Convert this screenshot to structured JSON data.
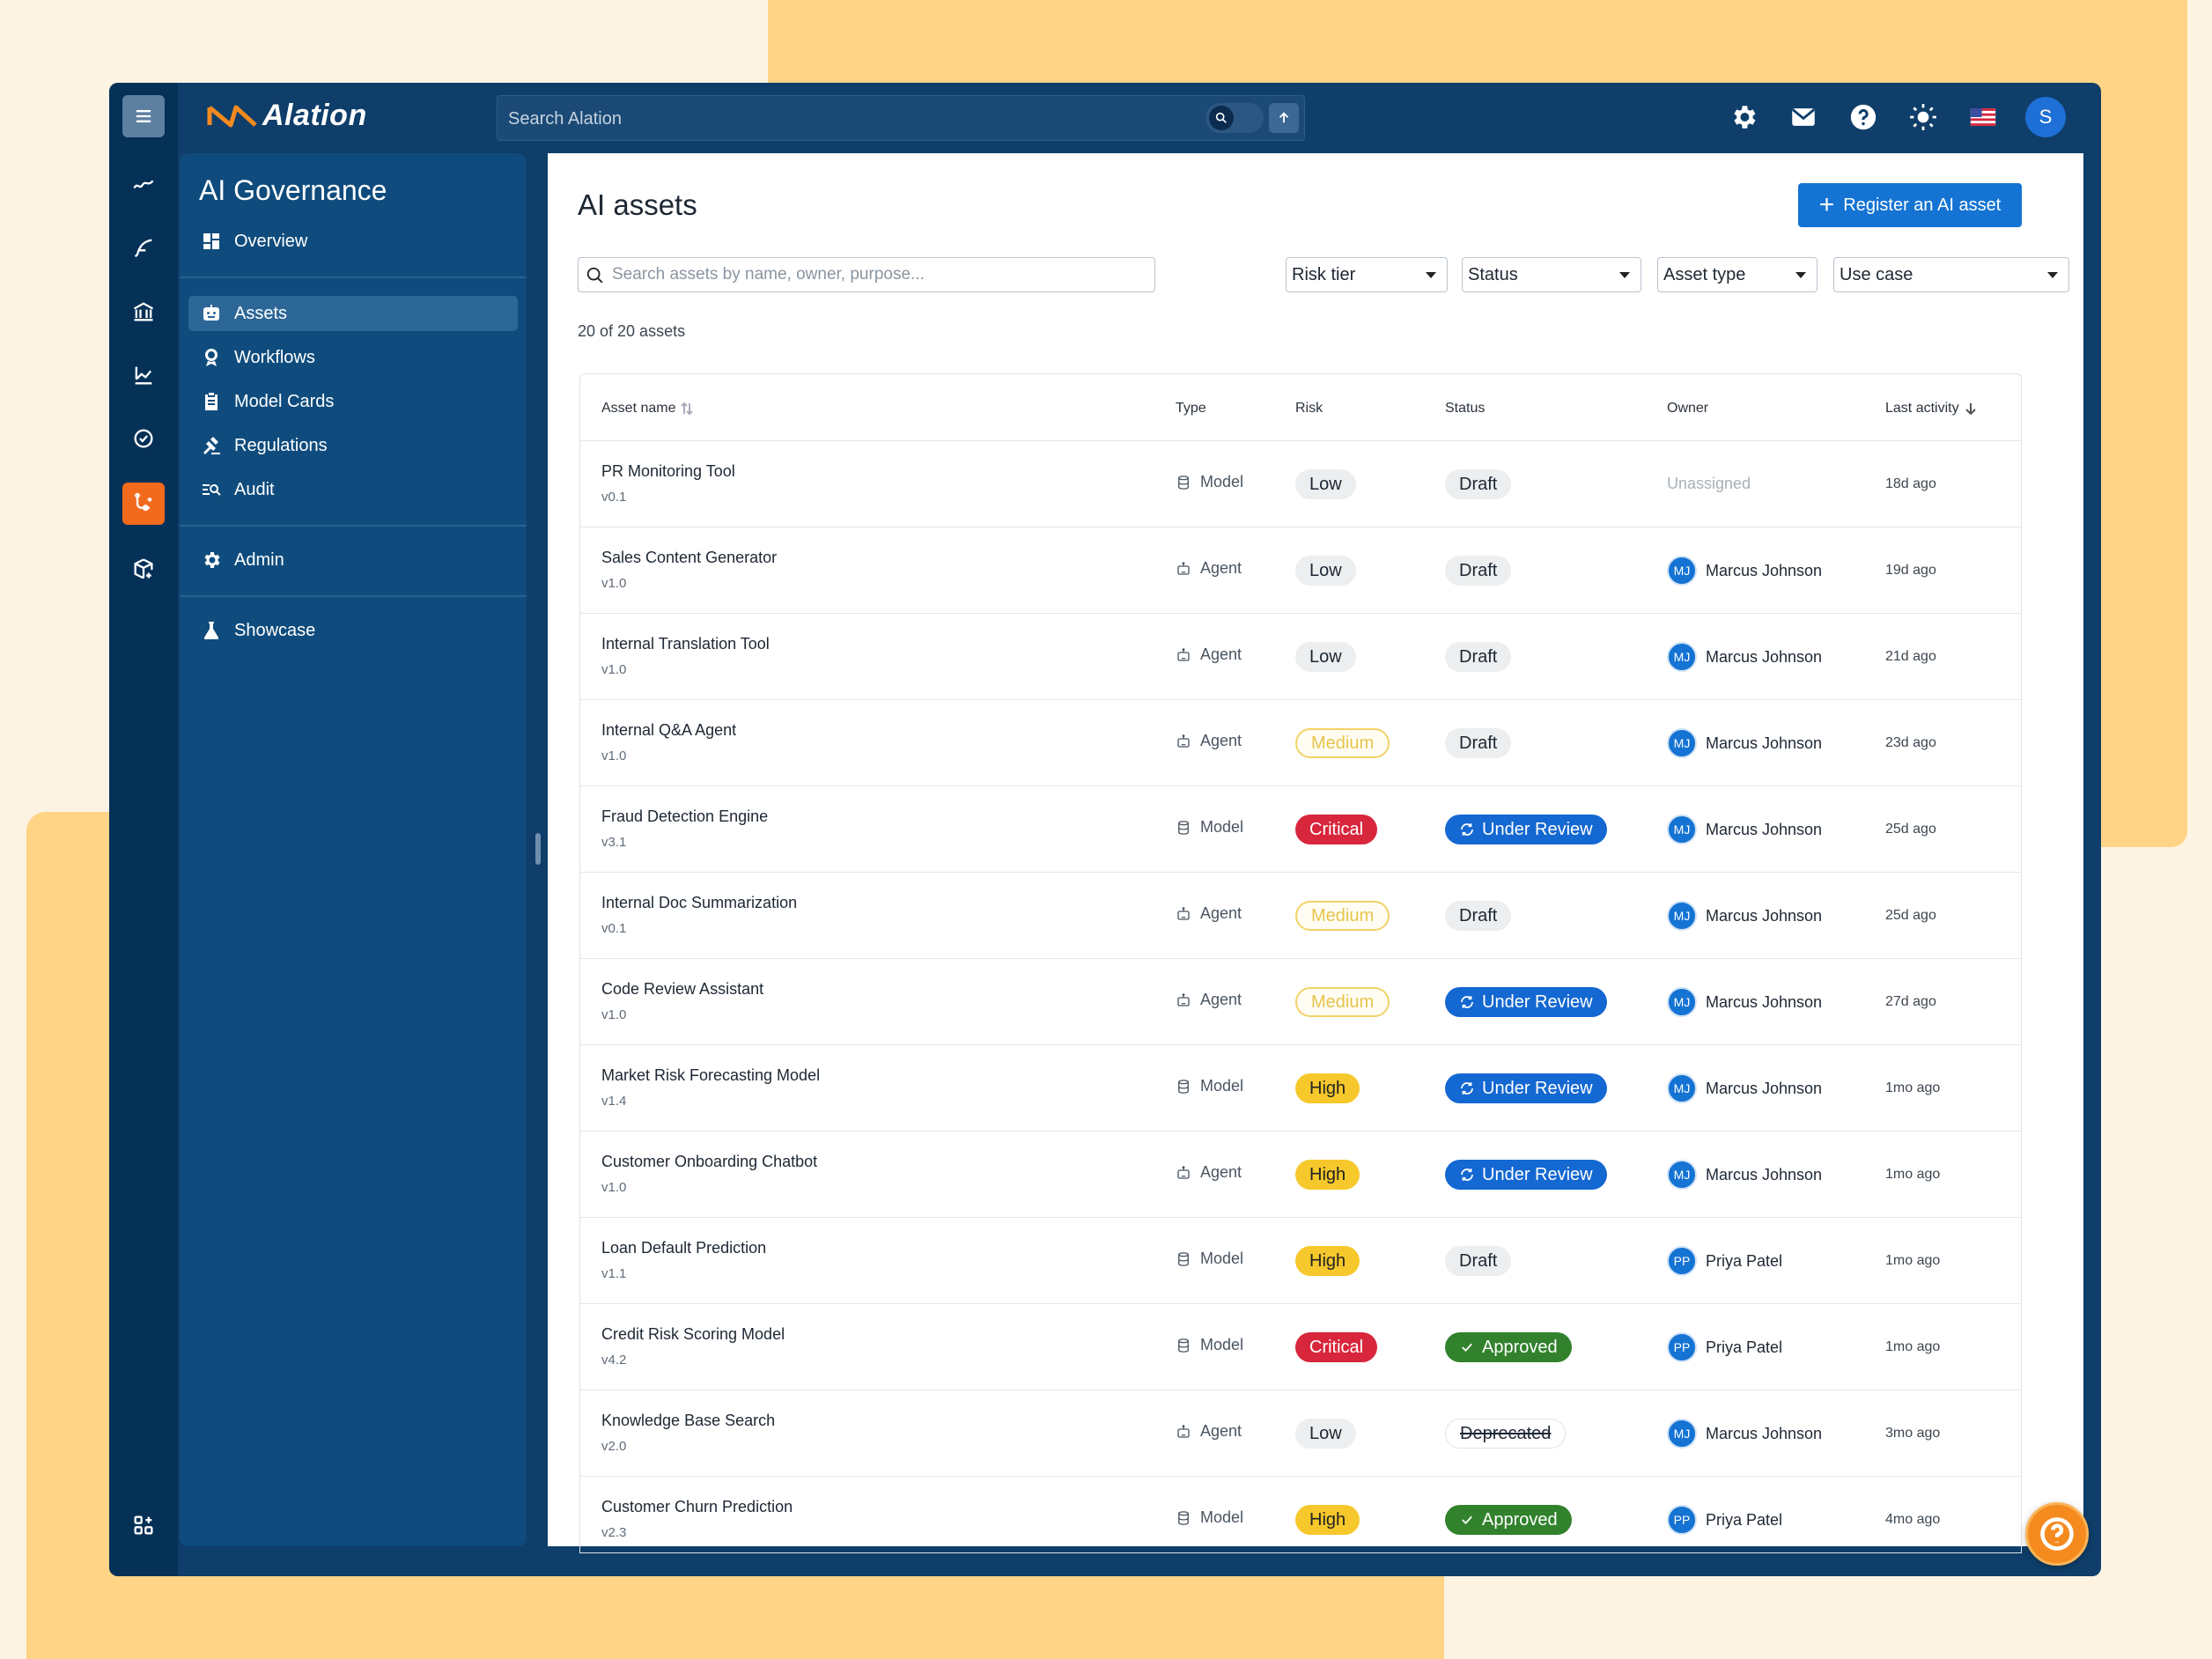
{
  "app": {
    "brand": "Alation",
    "search_placeholder": "Search Alation",
    "user_initial": "S"
  },
  "sidebar": {
    "title": "AI Governance",
    "items": [
      {
        "label": "Overview"
      },
      {
        "label": "Assets"
      },
      {
        "label": "Workflows"
      },
      {
        "label": "Model Cards"
      },
      {
        "label": "Regulations"
      },
      {
        "label": "Audit"
      },
      {
        "label": "Admin"
      },
      {
        "label": "Showcase"
      }
    ]
  },
  "main": {
    "title": "AI assets",
    "register_label": "Register an AI asset",
    "search_placeholder": "Search assets by name, owner, purpose...",
    "filters": [
      "Risk tier",
      "Status",
      "Asset type",
      "Use case"
    ],
    "count_text": "20 of 20 assets",
    "columns": [
      "Asset name",
      "Type",
      "Risk",
      "Status",
      "Owner",
      "Last activity"
    ],
    "rows": [
      {
        "name": "PR Monitoring Tool",
        "version": "v0.1",
        "type": "Model",
        "risk": "Low",
        "status": "Draft",
        "owner_initials": "",
        "owner": "Unassigned",
        "last": "18d ago"
      },
      {
        "name": "Sales Content Generator",
        "version": "v1.0",
        "type": "Agent",
        "risk": "Low",
        "status": "Draft",
        "owner_initials": "MJ",
        "owner": "Marcus Johnson",
        "last": "19d ago"
      },
      {
        "name": "Internal Translation Tool",
        "version": "v1.0",
        "type": "Agent",
        "risk": "Low",
        "status": "Draft",
        "owner_initials": "MJ",
        "owner": "Marcus Johnson",
        "last": "21d ago"
      },
      {
        "name": "Internal Q&A Agent",
        "version": "v1.0",
        "type": "Agent",
        "risk": "Medium",
        "status": "Draft",
        "owner_initials": "MJ",
        "owner": "Marcus Johnson",
        "last": "23d ago"
      },
      {
        "name": "Fraud Detection Engine",
        "version": "v3.1",
        "type": "Model",
        "risk": "Critical",
        "status": "Under Review",
        "owner_initials": "MJ",
        "owner": "Marcus Johnson",
        "last": "25d ago"
      },
      {
        "name": "Internal Doc Summarization",
        "version": "v0.1",
        "type": "Agent",
        "risk": "Medium",
        "status": "Draft",
        "owner_initials": "MJ",
        "owner": "Marcus Johnson",
        "last": "25d ago"
      },
      {
        "name": "Code Review Assistant",
        "version": "v1.0",
        "type": "Agent",
        "risk": "Medium",
        "status": "Under Review",
        "owner_initials": "MJ",
        "owner": "Marcus Johnson",
        "last": "27d ago"
      },
      {
        "name": "Market Risk Forecasting Model",
        "version": "v1.4",
        "type": "Model",
        "risk": "High",
        "status": "Under Review",
        "owner_initials": "MJ",
        "owner": "Marcus Johnson",
        "last": "1mo ago"
      },
      {
        "name": "Customer Onboarding Chatbot",
        "version": "v1.0",
        "type": "Agent",
        "risk": "High",
        "status": "Under Review",
        "owner_initials": "MJ",
        "owner": "Marcus Johnson",
        "last": "1mo ago"
      },
      {
        "name": "Loan Default Prediction",
        "version": "v1.1",
        "type": "Model",
        "risk": "High",
        "status": "Draft",
        "owner_initials": "PP",
        "owner": "Priya Patel",
        "last": "1mo ago"
      },
      {
        "name": "Credit Risk Scoring Model",
        "version": "v4.2",
        "type": "Model",
        "risk": "Critical",
        "status": "Approved",
        "owner_initials": "PP",
        "owner": "Priya Patel",
        "last": "1mo ago"
      },
      {
        "name": "Knowledge Base Search",
        "version": "v2.0",
        "type": "Agent",
        "risk": "Low",
        "status": "Deprecated",
        "owner_initials": "MJ",
        "owner": "Marcus Johnson",
        "last": "3mo ago"
      },
      {
        "name": "Customer Churn Prediction",
        "version": "v2.3",
        "type": "Model",
        "risk": "High",
        "status": "Approved",
        "owner_initials": "PP",
        "owner": "Priya Patel",
        "last": "4mo ago"
      }
    ]
  },
  "colors": {
    "brand_navy": "#0e3e69",
    "accent_orange": "#f26b1d",
    "primary_blue": "#1473d3",
    "critical": "#d8263c",
    "high": "#f6c82b",
    "approved": "#32822d"
  }
}
